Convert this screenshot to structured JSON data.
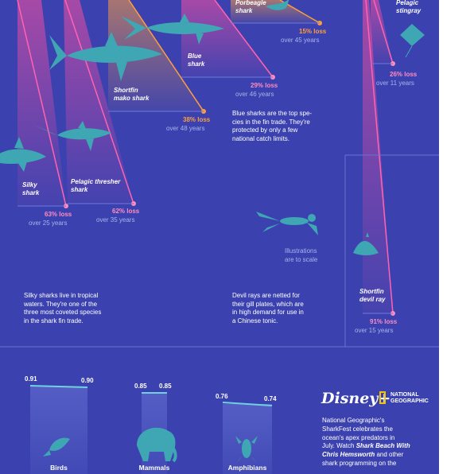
{
  "species": {
    "porbeagle": {
      "name_line1": "Porbeagle",
      "name_line2": "shark",
      "loss": "15% loss",
      "period": "over 45 years"
    },
    "pelagic_stingray": {
      "name_line1": "Pelagic",
      "name_line2": "stingray",
      "loss": "26% loss",
      "period": "over 11 years"
    },
    "blue_shark": {
      "name_line1": "Blue",
      "name_line2": "shark",
      "loss": "29% loss",
      "period": "over 46 years"
    },
    "shortfin_mako": {
      "name_line1": "Shortfin",
      "name_line2": "mako shark",
      "loss": "38% loss",
      "period": "over 48 years"
    },
    "silky_shark": {
      "name_line1": "Silky",
      "name_line2": "shark",
      "loss": "63% loss",
      "period": "over 25 years"
    },
    "pelagic_thresher": {
      "name_line1": "Pelagic thresher",
      "name_line2": "shark",
      "loss": "62% loss",
      "period": "over 35 years"
    },
    "shortfin_devil_ray": {
      "name_line1": "Shortfin",
      "name_line2": "devil ray",
      "loss": "91% loss",
      "period": "over 15 years"
    }
  },
  "notes": {
    "blue_shark": [
      "Blue sharks are the top spe-",
      "cies in the fin trade. They're",
      "protected by only a few",
      "national catch limits."
    ],
    "silky_shark": [
      "Silky sharks live in tropical",
      "waters. They're one of the",
      "three most coveted species",
      "in the shark fin trade."
    ],
    "devil_ray": [
      "Devil rays are netted for",
      "their gill plates, which are",
      "in high demand for use in",
      "a Chinese tonic."
    ],
    "scale": [
      "Illustrations",
      "are to scale"
    ]
  },
  "chart_data": {
    "type": "bar",
    "categories": [
      "Birds",
      "Mammals",
      "Amphibians"
    ],
    "series": [
      {
        "values": [
          "0.91",
          "0.85",
          "0.76"
        ]
      },
      {
        "values": [
          "0.90",
          "0.85",
          "0.74"
        ]
      }
    ]
  },
  "promo": {
    "logo_disney": "Disney+",
    "logo_natgeo_1": "NATIONAL",
    "logo_natgeo_2": "GEOGRAPHIC",
    "lines": [
      "National Geographic's",
      "SharkFest celebrates the",
      "ocean's apex predators in",
      "July. Watch",
      "Shark Beach With",
      "Chris Hemsworth",
      "and other",
      "shark programming on the"
    ]
  },
  "colors": {
    "background": "#3b42b0",
    "pink_accent": "#ff8cc0",
    "orange_accent": "#ff9e3d",
    "illustration_teal": "#3fa6b3"
  }
}
